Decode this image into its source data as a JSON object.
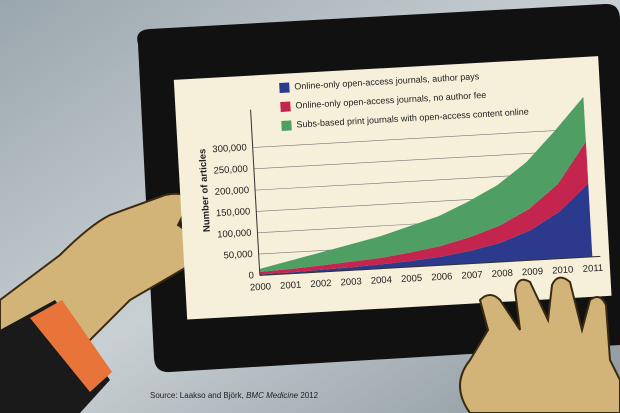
{
  "chart_data": {
    "type": "stacked_area",
    "y_label": "Number of articles",
    "categories": [
      "2000",
      "2001",
      "2002",
      "2003",
      "2004",
      "2005",
      "2006",
      "2007",
      "2008",
      "2009",
      "2010",
      "2011"
    ],
    "series": [
      {
        "name": "Online-only open-access journals, author pays",
        "color": "#2b3a8c",
        "values": [
          2000,
          3000,
          5000,
          7000,
          10000,
          14000,
          20000,
          30000,
          45000,
          70000,
          110000,
          172000
        ]
      },
      {
        "name": "Online-only open-access journals, no author fee",
        "color": "#c4254f",
        "values": [
          6000,
          8000,
          10000,
          13000,
          15000,
          20000,
          25000,
          32000,
          40000,
          50000,
          65000,
          98000
        ]
      },
      {
        "name": "Subs-based print journals with open-access content online",
        "color": "#4f9e63",
        "values": [
          7000,
          19000,
          30000,
          40000,
          50000,
          61000,
          70000,
          83000,
          95000,
          110000,
          125000,
          105000
        ]
      }
    ],
    "ylim": [
      0,
      370000
    ],
    "yticks": [
      0,
      {
        "value": 50000,
        "label": "50,000"
      },
      {
        "value": 100000,
        "label": "100,000"
      },
      {
        "value": 150000,
        "label": "150,000"
      },
      {
        "value": 200000,
        "label": "200,000"
      },
      {
        "value": 250000,
        "label": "250,000"
      },
      {
        "value": 300000,
        "label": "300,000"
      }
    ],
    "grid": true,
    "source": [
      "Source: Laakso and Björk,",
      "BMC Medicine",
      "2012"
    ]
  }
}
